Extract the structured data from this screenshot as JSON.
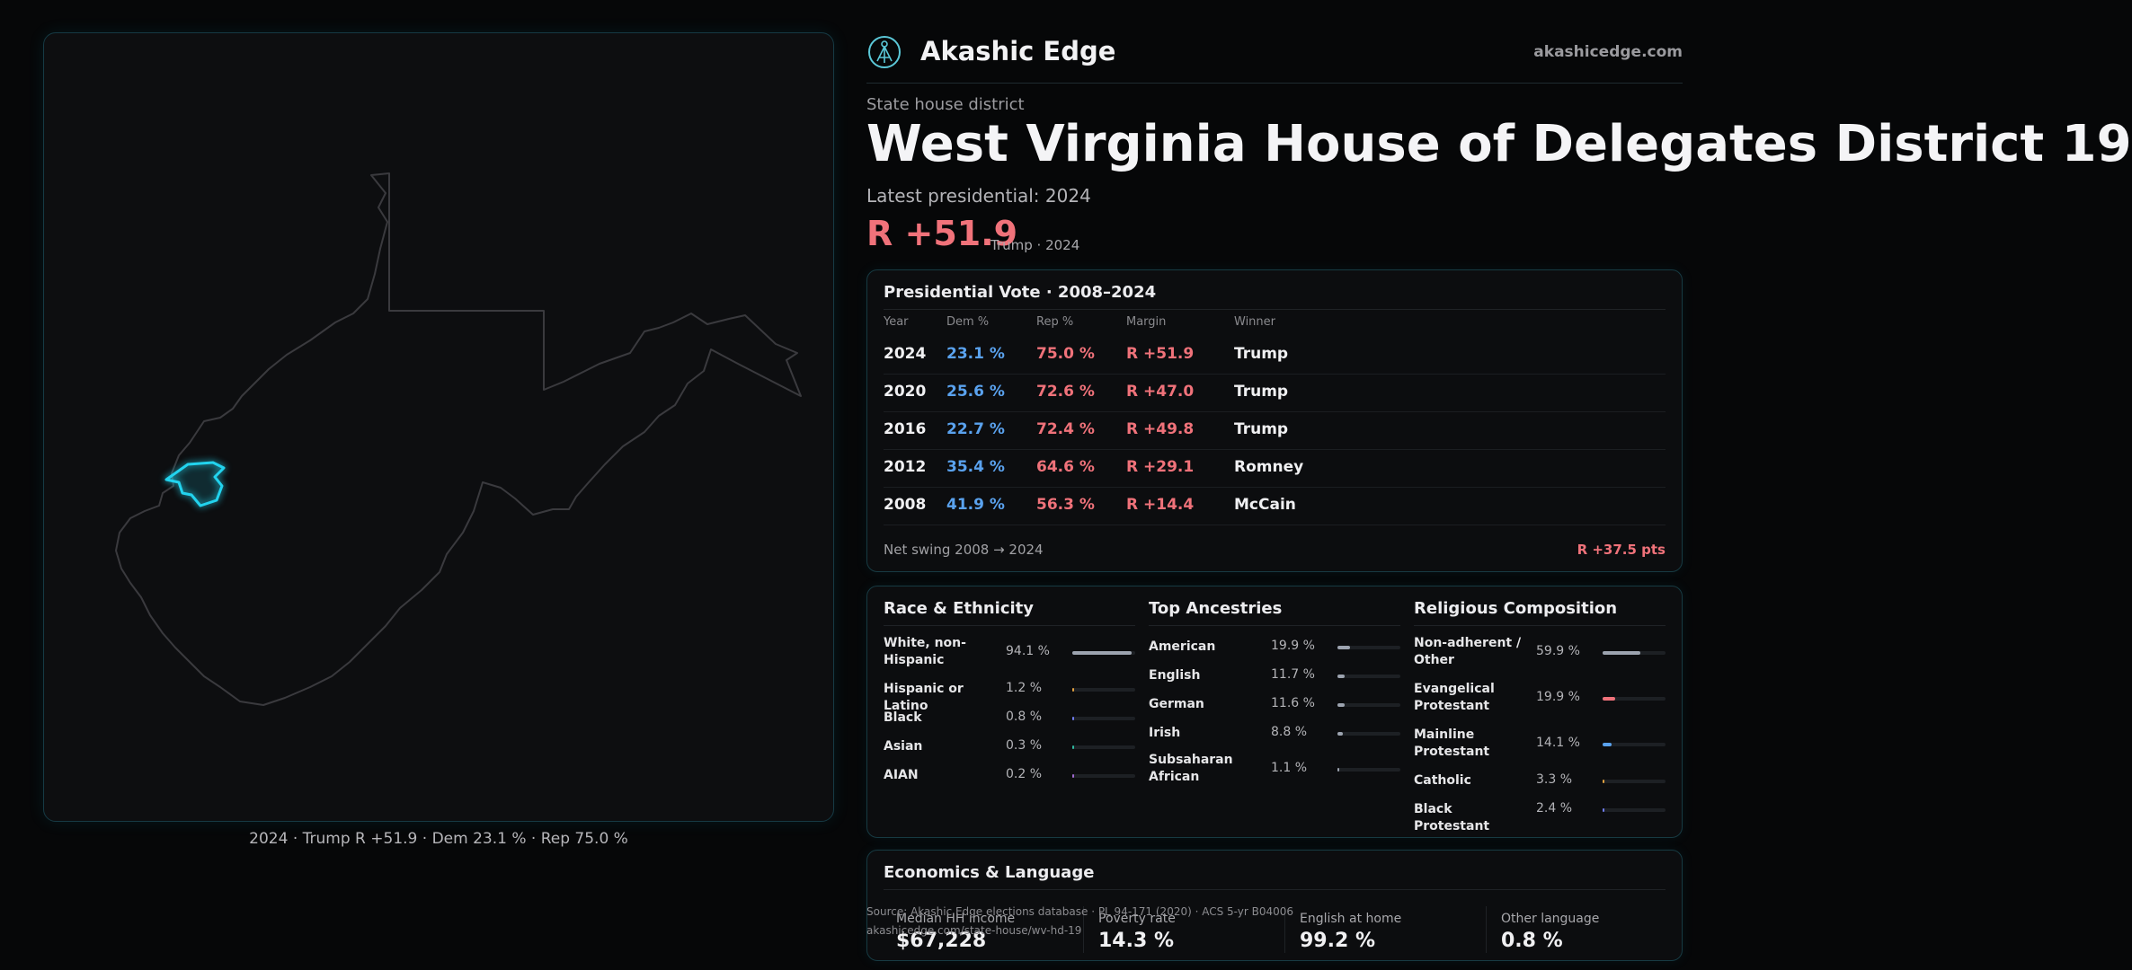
{
  "map": {
    "caption": "2024 · Trump R +51.9 · Dem 23.1 % · Rep 75.0 %",
    "colors": {
      "state_outline": "#3a3a3e",
      "district": "#22d3ee"
    }
  },
  "brand": {
    "name": "Akashic Edge",
    "url": "akashicedge.com",
    "logo_icon": "akashic-edge-logo-icon"
  },
  "header": {
    "eyebrow": "State house district",
    "title": "West Virginia House of Delegates District 19",
    "latest_label": "Latest presidential: 2024",
    "margin": "R +51.9",
    "margin_sub": "Trump · 2024"
  },
  "presidential": {
    "title": "Presidential Vote · 2008–2024",
    "columns": [
      "Year",
      "Dem %",
      "Rep %",
      "Margin",
      "Winner"
    ],
    "rows": [
      {
        "year": "2024",
        "dem": "23.1 %",
        "rep": "75.0 %",
        "margin": "R +51.9",
        "winner": "Trump"
      },
      {
        "year": "2020",
        "dem": "25.6 %",
        "rep": "72.6 %",
        "margin": "R +47.0",
        "winner": "Trump"
      },
      {
        "year": "2016",
        "dem": "22.7 %",
        "rep": "72.4 %",
        "margin": "R +49.8",
        "winner": "Trump"
      },
      {
        "year": "2012",
        "dem": "35.4 %",
        "rep": "64.6 %",
        "margin": "R +29.1",
        "winner": "Romney"
      },
      {
        "year": "2008",
        "dem": "41.9 %",
        "rep": "56.3 %",
        "margin": "R +14.4",
        "winner": "McCain"
      }
    ],
    "swing_label": "Net swing 2008 → 2024",
    "swing_value": "R +37.5 pts"
  },
  "race": {
    "title": "Race & Ethnicity",
    "items": [
      {
        "label": "White, non-Hispanic",
        "pct": "94.1 %",
        "value": 94.1,
        "color": "#9ca3af"
      },
      {
        "label": "Hispanic or Latino",
        "pct": "1.2 %",
        "value": 1.2,
        "color": "#e0a040"
      },
      {
        "label": "Black",
        "pct": "0.8 %",
        "value": 0.8,
        "color": "#6f7cf0"
      },
      {
        "label": "Asian",
        "pct": "0.3 %",
        "value": 0.3,
        "color": "#2fb8a0"
      },
      {
        "label": "AIAN",
        "pct": "0.2 %",
        "value": 0.2,
        "color": "#a06ad0"
      }
    ]
  },
  "ancestry": {
    "title": "Top Ancestries",
    "items": [
      {
        "label": "American",
        "pct": "19.9 %",
        "value": 19.9,
        "color": "#9ca3af"
      },
      {
        "label": "English",
        "pct": "11.7 %",
        "value": 11.7,
        "color": "#9ca3af"
      },
      {
        "label": "German",
        "pct": "11.6 %",
        "value": 11.6,
        "color": "#9ca3af"
      },
      {
        "label": "Irish",
        "pct": "8.8 %",
        "value": 8.8,
        "color": "#9ca3af"
      },
      {
        "label": "Subsaharan African",
        "pct": "1.1 %",
        "value": 1.1,
        "color": "#9ca3af"
      }
    ]
  },
  "religion": {
    "title": "Religious Composition",
    "items": [
      {
        "label": "Non-adherent / Other",
        "pct": "59.9 %",
        "value": 59.9,
        "color": "#9ca3af"
      },
      {
        "label": "Evangelical Protestant",
        "pct": "19.9 %",
        "value": 19.9,
        "color": "#f0727a"
      },
      {
        "label": "Mainline Protestant",
        "pct": "14.1 %",
        "value": 14.1,
        "color": "#5aa2ee"
      },
      {
        "label": "Catholic",
        "pct": "3.3 %",
        "value": 3.3,
        "color": "#e0a040"
      },
      {
        "label": "Black Protestant",
        "pct": "2.4 %",
        "value": 2.4,
        "color": "#6f7cf0"
      }
    ]
  },
  "economics": {
    "title": "Economics & Language",
    "stats": [
      {
        "label": "Median HH income",
        "value": "$67,228"
      },
      {
        "label": "Poverty rate",
        "value": "14.3 %"
      },
      {
        "label": "English at home",
        "value": "99.2 %"
      },
      {
        "label": "Other language",
        "value": "0.8 %"
      }
    ]
  },
  "source": {
    "line1": "Source: Akashic Edge elections database · PL 94-171 (2020) · ACS 5-yr B04006",
    "line2": "akashicedge.com/state-house/wv-hd-19"
  }
}
